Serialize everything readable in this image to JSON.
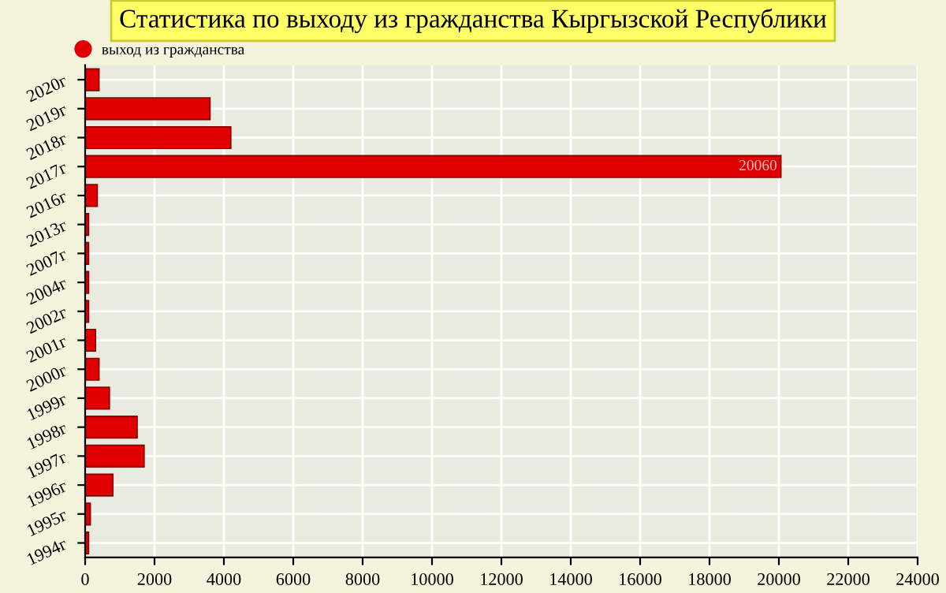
{
  "chart_data": {
    "type": "bar",
    "orientation": "horizontal",
    "title": "Статистика по выходу из гражданства Кыргызской Республики",
    "categories": [
      "2020г",
      "2019г",
      "2018г",
      "2017г",
      "2016г",
      "2013г",
      "2007г",
      "2004г",
      "2002г",
      "2001г",
      "2000г",
      "1999г",
      "1998г",
      "1997г",
      "1996г",
      "1995г",
      "1994г"
    ],
    "series": [
      {
        "name": "выход из гражданства",
        "color": "#e00000",
        "values": [
          400,
          3600,
          4200,
          20060,
          350,
          100,
          100,
          100,
          100,
          300,
          400,
          700,
          1500,
          1700,
          800,
          150,
          100
        ],
        "value_labels": [
          null,
          null,
          null,
          "20060",
          null,
          null,
          null,
          null,
          null,
          null,
          null,
          null,
          null,
          null,
          null,
          null,
          null
        ]
      }
    ],
    "xlim": [
      0,
      24000
    ],
    "xticks": [
      0,
      2000,
      4000,
      6000,
      8000,
      10000,
      12000,
      14000,
      16000,
      18000,
      20000,
      22000,
      24000
    ],
    "grid": true,
    "legend": "top left"
  }
}
